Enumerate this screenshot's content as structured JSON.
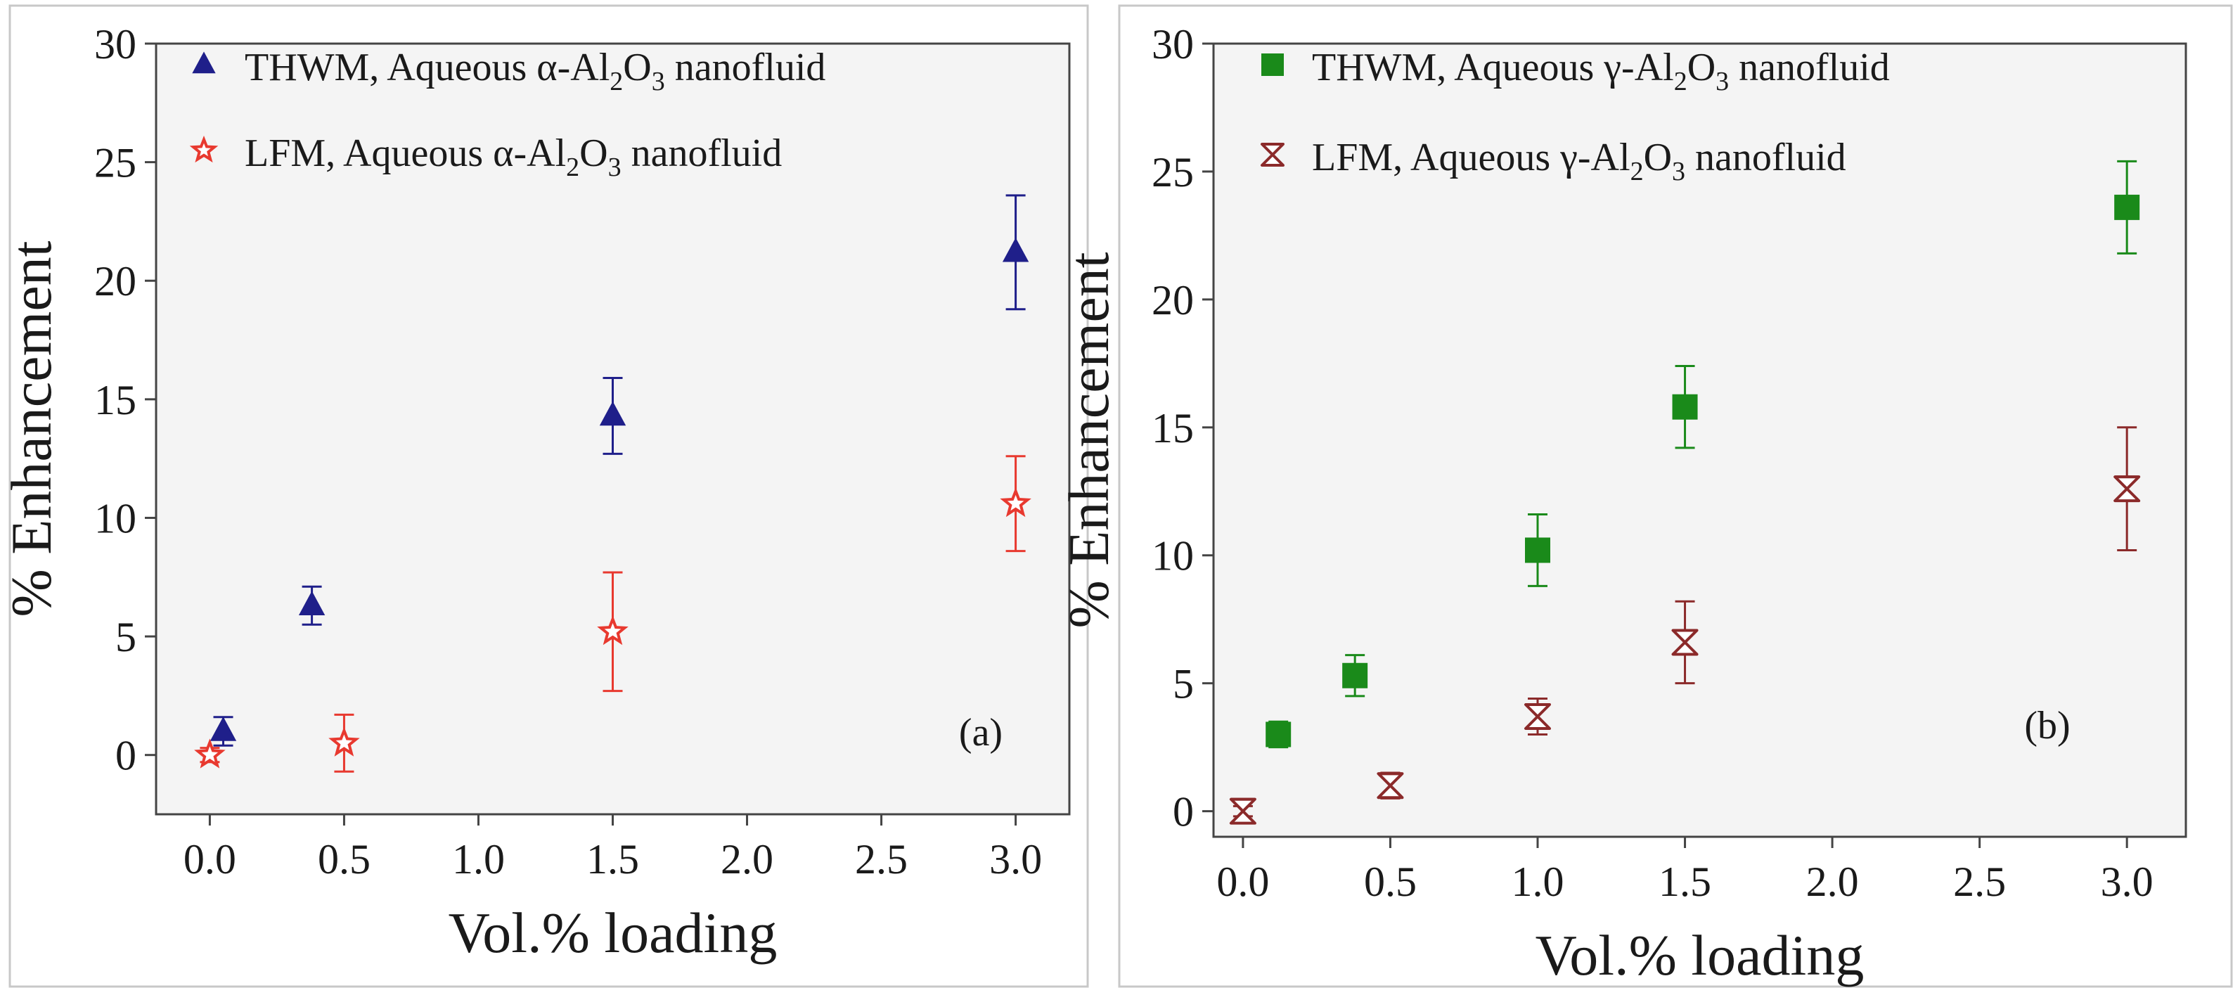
{
  "chart_data": [
    {
      "type": "scatter",
      "panel_label": "(a)",
      "xlabel": "Vol.% loading",
      "ylabel": "% Enhancement",
      "xlim": [
        -0.2,
        3.2
      ],
      "ylim": [
        -2.5,
        30
      ],
      "xticks": [
        0.0,
        0.5,
        1.0,
        1.5,
        2.0,
        2.5,
        3.0
      ],
      "xtick_labels": [
        "0.0",
        "0.5",
        "1.0",
        "1.5",
        "2.0",
        "2.5",
        "3.0"
      ],
      "yticks": [
        0,
        5,
        10,
        15,
        20,
        25,
        30
      ],
      "ytick_labels": [
        "0",
        "5",
        "10",
        "15",
        "20",
        "25",
        "30"
      ],
      "legend_position": "top-left",
      "series": [
        {
          "name": "THWM, Aqueous α-Al2O3 nanofluid",
          "legend": {
            "method": "THWM, Aqueous ",
            "phase": "α",
            "mid": "-Al",
            "s1": "2",
            "o": "O",
            "s2": "3",
            "tail": " nanofluid"
          },
          "marker": "filled-triangle",
          "color": "#1f1f8a",
          "points": [
            {
              "x": 0.05,
              "y": 1.0,
              "err": 0.6
            },
            {
              "x": 0.38,
              "y": 6.3,
              "err": 0.8
            },
            {
              "x": 1.5,
              "y": 14.3,
              "err": 1.6
            },
            {
              "x": 3.0,
              "y": 21.2,
              "err": 2.4
            }
          ]
        },
        {
          "name": "LFM, Aqueous α-Al2O3 nanofluid",
          "legend": {
            "method": "LFM, Aqueous ",
            "phase": "α",
            "mid": "-Al",
            "s1": "2",
            "o": "O",
            "s2": "3",
            "tail": " nanofluid"
          },
          "marker": "open-star",
          "color": "#e8392f",
          "points": [
            {
              "x": 0.0,
              "y": 0.0,
              "err": 0.3
            },
            {
              "x": 0.5,
              "y": 0.5,
              "err": 1.2
            },
            {
              "x": 1.5,
              "y": 5.2,
              "err": 2.5
            },
            {
              "x": 3.0,
              "y": 10.6,
              "err": 2.0
            }
          ]
        }
      ]
    },
    {
      "type": "scatter",
      "panel_label": "(b)",
      "xlabel": "Vol.% loading",
      "ylabel": "% Enhancement",
      "xlim": [
        -0.1,
        3.2
      ],
      "ylim": [
        -1,
        30
      ],
      "xticks": [
        0.0,
        0.5,
        1.0,
        1.5,
        2.0,
        2.5,
        3.0
      ],
      "xtick_labels": [
        "0.0",
        "0.5",
        "1.0",
        "1.5",
        "2.0",
        "2.5",
        "3.0"
      ],
      "yticks": [
        0,
        5,
        10,
        15,
        20,
        25,
        30
      ],
      "ytick_labels": [
        "0",
        "5",
        "10",
        "15",
        "20",
        "25",
        "30"
      ],
      "legend_position": "top-left",
      "series": [
        {
          "name": "THWM, Aqueous γ-Al2O3 nanofluid",
          "legend": {
            "method": "THWM, Aqueous ",
            "phase": "γ",
            "mid": "-Al",
            "s1": "2",
            "o": "O",
            "s2": "3",
            "tail": " nanofluid"
          },
          "marker": "filled-square",
          "color": "#1a8a1a",
          "points": [
            {
              "x": 0.12,
              "y": 3.0,
              "err": 0.5
            },
            {
              "x": 0.38,
              "y": 5.3,
              "err": 0.8
            },
            {
              "x": 1.0,
              "y": 10.2,
              "err": 1.4
            },
            {
              "x": 1.5,
              "y": 15.8,
              "err": 1.6
            },
            {
              "x": 3.0,
              "y": 23.6,
              "err": 1.8
            }
          ]
        },
        {
          "name": "LFM, Aqueous γ-Al2O3 nanofluid",
          "legend": {
            "method": "LFM, Aqueous ",
            "phase": "γ",
            "mid": "-Al",
            "s1": "2",
            "o": "O",
            "s2": "3",
            "tail": " nanofluid"
          },
          "marker": "open-hourglass",
          "color": "#8b2a2a",
          "points": [
            {
              "x": 0.0,
              "y": 0.0,
              "err": 0.2
            },
            {
              "x": 0.5,
              "y": 1.0,
              "err": 0.5
            },
            {
              "x": 1.0,
              "y": 3.7,
              "err": 0.7
            },
            {
              "x": 1.5,
              "y": 6.6,
              "err": 1.6
            },
            {
              "x": 3.0,
              "y": 12.6,
              "err": 2.4
            }
          ]
        }
      ]
    }
  ]
}
